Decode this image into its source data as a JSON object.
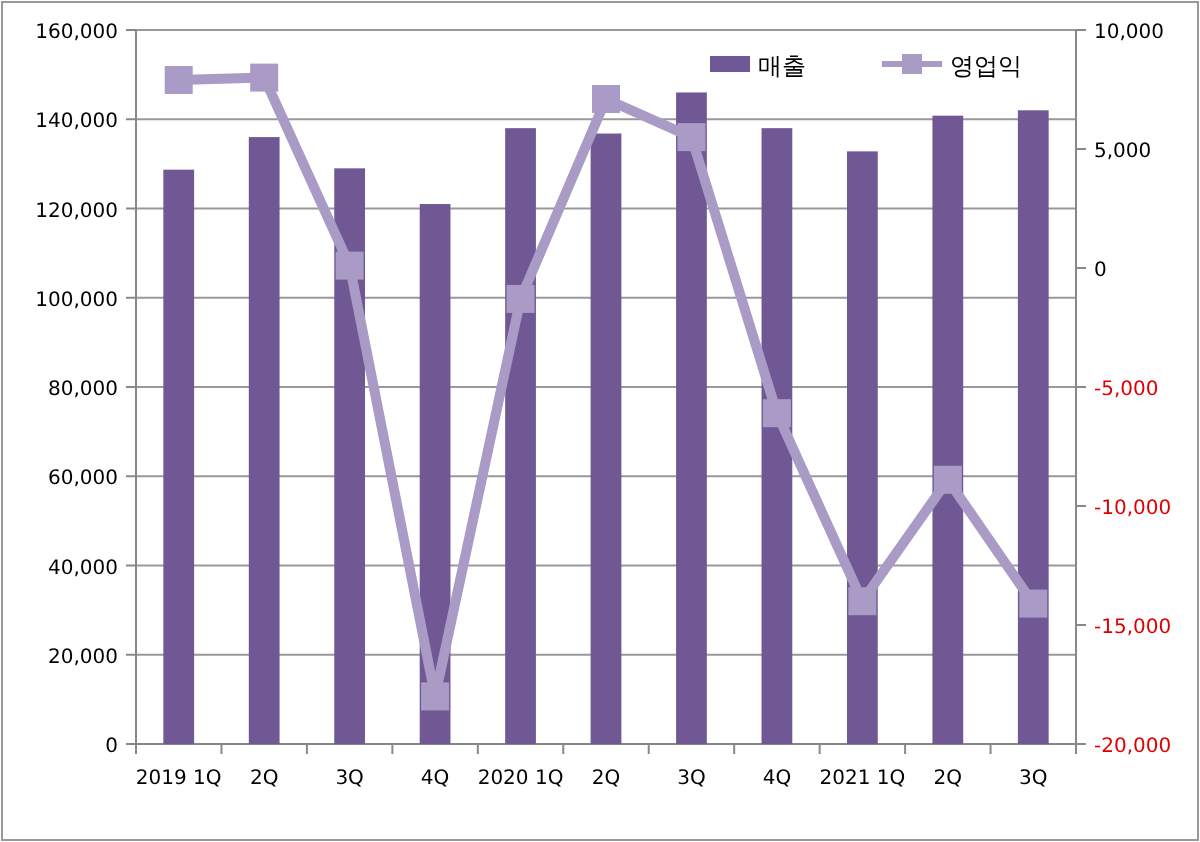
{
  "chart_data": {
    "type": "bar",
    "categories": [
      "2019 1Q",
      "2Q",
      "3Q",
      "4Q",
      "2020 1Q",
      "2Q",
      "3Q",
      "4Q",
      "2021 1Q",
      "2Q",
      "3Q"
    ],
    "series": [
      {
        "name": "매출",
        "color": "#6f5893",
        "values": [
          128700,
          136000,
          129000,
          121000,
          138000,
          136800,
          146000,
          138000,
          132800,
          140800,
          142000
        ]
      },
      {
        "name": "영업익",
        "type": "line",
        "axis": "y2",
        "color": "#a99bc5",
        "marker": "square",
        "values": [
          7900,
          8000,
          100,
          -18000,
          -1300,
          7100,
          5500,
          -6100,
          -14000,
          -8900,
          -14100
        ]
      }
    ],
    "ylim": [
      0,
      160000
    ],
    "yticks": [
      {
        "value": 0,
        "label": "0"
      },
      {
        "value": 20000,
        "label": "20,000"
      },
      {
        "value": 40000,
        "label": "40,000"
      },
      {
        "value": 60000,
        "label": "60,000"
      },
      {
        "value": 80000,
        "label": "80,000"
      },
      {
        "value": 100000,
        "label": "100,000"
      },
      {
        "value": 120000,
        "label": "120,000"
      },
      {
        "value": 140000,
        "label": "140,000"
      },
      {
        "value": 160000,
        "label": "160,000"
      }
    ],
    "y2lim": [
      -20000,
      10000
    ],
    "y2ticks": [
      {
        "value": -20000,
        "label": "-20,000"
      },
      {
        "value": -15000,
        "label": "-15,000"
      },
      {
        "value": -10000,
        "label": "-10,000"
      },
      {
        "value": -5000,
        "label": "-5,000"
      },
      {
        "value": 0,
        "label": "0"
      },
      {
        "value": 5000,
        "label": "5,000"
      },
      {
        "value": 10000,
        "label": "10,000"
      }
    ],
    "grid": "y",
    "legend": "top right"
  }
}
